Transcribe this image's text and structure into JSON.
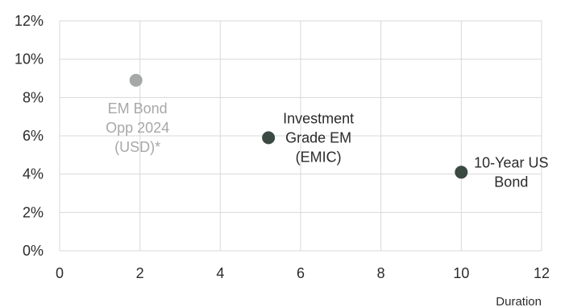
{
  "chart_data": {
    "type": "scatter",
    "title": "",
    "xlabel": "Duration",
    "ylabel": "",
    "xlim": [
      0,
      12
    ],
    "ylim": [
      0,
      12
    ],
    "xticks": [
      0,
      2,
      4,
      6,
      8,
      10,
      12
    ],
    "yticks": [
      0,
      2,
      4,
      6,
      8,
      10,
      12
    ],
    "ytick_format": "percent",
    "grid": true,
    "legend": "none",
    "points": [
      {
        "label_lines": [
          "EM Bond",
          "Opp 2024",
          "(USD)*"
        ],
        "x": 1.9,
        "y": 8.9,
        "color": "#a6a8a7",
        "label_color": "#a6a8a7",
        "label_position": "below"
      },
      {
        "label_lines": [
          "Investment",
          "Grade EM",
          "(EMIC)"
        ],
        "x": 5.2,
        "y": 5.9,
        "color": "#3a4a43",
        "label_color": "#2b2b2b",
        "label_position": "right"
      },
      {
        "label_lines": [
          "10-Year US",
          "Bond"
        ],
        "x": 10.0,
        "y": 4.1,
        "color": "#3a4a43",
        "label_color": "#2b2b2b",
        "label_position": "right"
      }
    ]
  }
}
